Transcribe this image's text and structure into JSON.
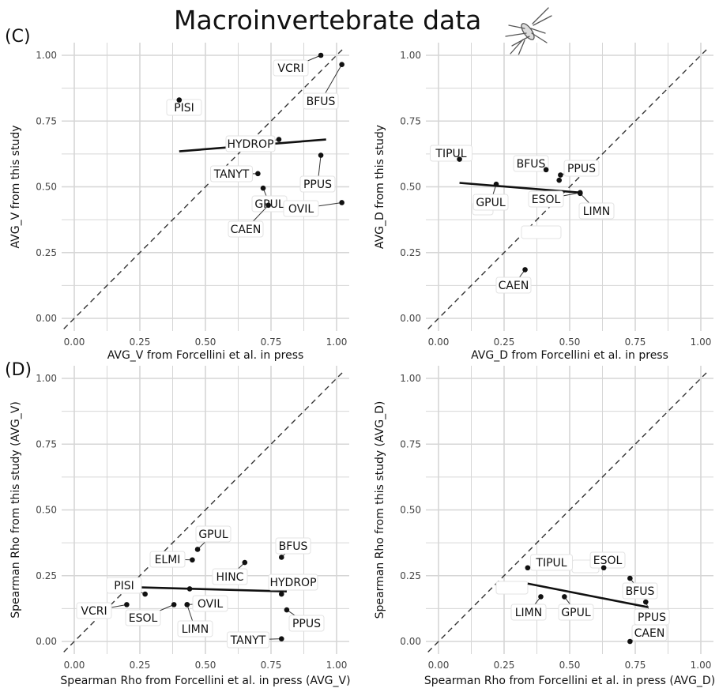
{
  "title": "Macroinvertebrate data",
  "panel_tags": {
    "c": "(C)",
    "d": "(D)"
  },
  "colors": {
    "grid": "#d6d6d6",
    "points": "#111111",
    "fit_line": "#111111",
    "identity_line": "#333333",
    "label_border": "#e3e3e3"
  },
  "icons": {
    "logo": "insect-icon"
  },
  "chart_data": [
    {
      "id": "avg-v",
      "type": "scatter",
      "xlabel": "AVG_V from Forcellini et al. in press",
      "ylabel": "AVG_V from this study",
      "xlim": [
        0,
        1
      ],
      "ylim": [
        0,
        1
      ],
      "xticks": [
        "0.00",
        "0.25",
        "0.50",
        "0.75",
        "1.00"
      ],
      "yticks": [
        "0.00",
        "0.25",
        "0.50",
        "0.75",
        "1.00"
      ],
      "grid": true,
      "identity_line": true,
      "fit_line": [
        [
          0.4,
          0.635
        ],
        [
          0.96,
          0.68
        ]
      ],
      "points": [
        {
          "label": "VCRI",
          "x": 0.94,
          "y": 1.0
        },
        {
          "label": "BFUS",
          "x": 1.02,
          "y": 0.965
        },
        {
          "label": "PISI",
          "x": 0.4,
          "y": 0.83
        },
        {
          "label": "HYDROP",
          "x": 0.78,
          "y": 0.68
        },
        {
          "label": "PPUS",
          "x": 0.94,
          "y": 0.62
        },
        {
          "label": "TANYT",
          "x": 0.7,
          "y": 0.55
        },
        {
          "label": "GPUL",
          "x": 0.72,
          "y": 0.495
        },
        {
          "label": "OVIL",
          "x": 1.02,
          "y": 0.44
        },
        {
          "label": "CAEN",
          "x": 0.74,
          "y": 0.43
        }
      ]
    },
    {
      "id": "avg-d",
      "type": "scatter",
      "xlabel": "AVG_D from Forcellini et al. in press",
      "ylabel": "AVG_D from this study",
      "xlim": [
        0,
        1
      ],
      "ylim": [
        0,
        1
      ],
      "xticks": [
        "0.00",
        "0.25",
        "0.50",
        "0.75",
        "1.00"
      ],
      "yticks": [
        "0.00",
        "0.25",
        "0.50",
        "0.75",
        "1.00"
      ],
      "grid": true,
      "identity_line": true,
      "fit_line": [
        [
          0.08,
          0.515
        ],
        [
          0.54,
          0.478
        ]
      ],
      "points": [
        {
          "label": "TIPUL",
          "x": 0.08,
          "y": 0.605
        },
        {
          "label": "BFUS",
          "x": 0.41,
          "y": 0.565
        },
        {
          "label": "PPUS",
          "x": 0.465,
          "y": 0.545
        },
        {
          "label": "",
          "x": 0.46,
          "y": 0.525
        },
        {
          "label": "GPUL",
          "x": 0.22,
          "y": 0.51
        },
        {
          "label": "ESOL",
          "x": 0.54,
          "y": 0.478
        },
        {
          "label": "LIMN",
          "x": 0.54,
          "y": 0.475
        },
        {
          "label": "CAEN",
          "x": 0.33,
          "y": 0.185
        }
      ]
    },
    {
      "id": "rho-v",
      "type": "scatter",
      "xlabel": "Spearman Rho from Forcellini et al. in press (AVG_V)",
      "ylabel": "Spearman Rho from this study (AVG_V)",
      "xlim": [
        0,
        1
      ],
      "ylim": [
        0,
        1
      ],
      "xticks": [
        "0.00",
        "0.25",
        "0.50",
        "0.75",
        "1.00"
      ],
      "yticks": [
        "0.00",
        "0.25",
        "0.50",
        "0.75",
        "1.00"
      ],
      "grid": true,
      "identity_line": true,
      "fit_line": [
        [
          0.2,
          0.207
        ],
        [
          0.81,
          0.19
        ]
      ],
      "points": [
        {
          "label": "GPUL",
          "x": 0.47,
          "y": 0.35
        },
        {
          "label": "ELMI",
          "x": 0.45,
          "y": 0.31
        },
        {
          "label": "BFUS",
          "x": 0.79,
          "y": 0.32
        },
        {
          "label": "HINC",
          "x": 0.65,
          "y": 0.3
        },
        {
          "label": "PISI",
          "x": 0.27,
          "y": 0.18
        },
        {
          "label": "HYDROP",
          "x": 0.79,
          "y": 0.18
        },
        {
          "label": "",
          "x": 0.44,
          "y": 0.2
        },
        {
          "label": "VCRI",
          "x": 0.2,
          "y": 0.14
        },
        {
          "label": "ESOL",
          "x": 0.38,
          "y": 0.14
        },
        {
          "label": "OVIL",
          "x": 0.43,
          "y": 0.14
        },
        {
          "label": "LIMN",
          "x": 0.43,
          "y": 0.14
        },
        {
          "label": "PPUS",
          "x": 0.81,
          "y": 0.12
        },
        {
          "label": "TANYT",
          "x": 0.79,
          "y": 0.01
        }
      ]
    },
    {
      "id": "rho-d",
      "type": "scatter",
      "xlabel": "Spearman Rho from Forcellini et al. in press (AVG_D)",
      "ylabel": "Spearman Rho from this study (AVG_D)",
      "xlim": [
        0,
        1
      ],
      "ylim": [
        0,
        1
      ],
      "xticks": [
        "0.00",
        "0.25",
        "0.50",
        "0.75",
        "1.00"
      ],
      "yticks": [
        "0.00",
        "0.25",
        "0.50",
        "0.75",
        "1.00"
      ],
      "grid": true,
      "identity_line": true,
      "fit_line": [
        [
          0.34,
          0.22
        ],
        [
          0.8,
          0.13
        ]
      ],
      "points": [
        {
          "label": "TIPUL",
          "x": 0.34,
          "y": 0.28
        },
        {
          "label": "ESOL",
          "x": 0.63,
          "y": 0.28
        },
        {
          "label": "BFUS",
          "x": 0.73,
          "y": 0.24
        },
        {
          "label": "LIMN",
          "x": 0.39,
          "y": 0.17
        },
        {
          "label": "GPUL",
          "x": 0.48,
          "y": 0.17
        },
        {
          "label": "PPUS",
          "x": 0.79,
          "y": 0.15
        },
        {
          "label": "CAEN",
          "x": 0.73,
          "y": 0.0
        }
      ]
    }
  ]
}
